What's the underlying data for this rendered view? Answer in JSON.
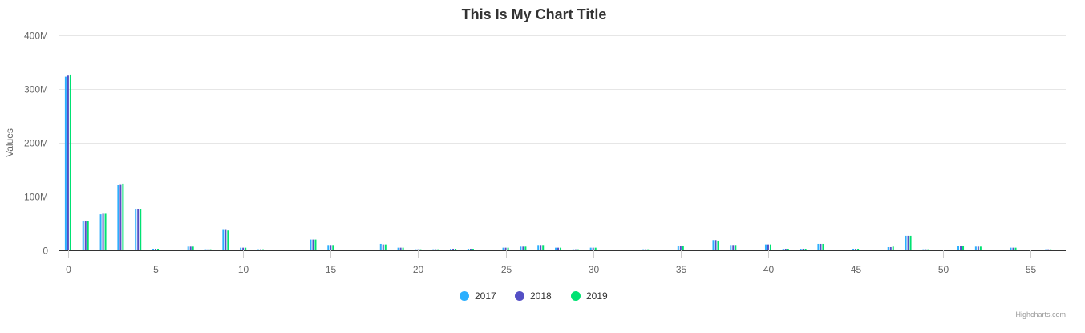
{
  "chart_data": {
    "type": "bar",
    "title": "This Is My Chart Title",
    "ylabel": "Values",
    "xlabel": "",
    "ylim": [
      0,
      400000000
    ],
    "yticks": [
      0,
      100000000,
      200000000,
      300000000,
      400000000
    ],
    "ytick_labels": [
      "0",
      "100M",
      "200M",
      "300M",
      "400M"
    ],
    "xlim": [
      -0.5,
      57
    ],
    "xticks": [
      0,
      5,
      10,
      15,
      20,
      25,
      30,
      35,
      40,
      45,
      50,
      55
    ],
    "xtick_labels": [
      "0",
      "5",
      "10",
      "15",
      "20",
      "25",
      "30",
      "35",
      "40",
      "45",
      "50",
      "55"
    ],
    "grid": true,
    "legend_position": "bottom-center",
    "credits": "Highcharts.com",
    "series": [
      {
        "name": "2017",
        "color": "#2caffe",
        "values": [
          323000000,
          55000000,
          67000000,
          122000000,
          77000000,
          3000000,
          0,
          7000000,
          2000000,
          38000000,
          5000000,
          2000000,
          0,
          0,
          20000000,
          10000000,
          0,
          0,
          12000000,
          5000000,
          2000000,
          2000000,
          3000000,
          3000000,
          0,
          5000000,
          7000000,
          10000000,
          5000000,
          2000000,
          5000000,
          0,
          0,
          2000000,
          0,
          8000000,
          0,
          19000000,
          10000000,
          0,
          11000000,
          3000000,
          3000000,
          12000000,
          0,
          3000000,
          0,
          6000000,
          27000000,
          2000000,
          0,
          8000000,
          7000000,
          0,
          5000000,
          0,
          2000000
        ]
      },
      {
        "name": "2018",
        "color": "#544fc5",
        "values": [
          325000000,
          55000000,
          68000000,
          123000000,
          77000000,
          3000000,
          0,
          7000000,
          2000000,
          38000000,
          5000000,
          2000000,
          0,
          0,
          20000000,
          10000000,
          0,
          0,
          11000000,
          5000000,
          2000000,
          2000000,
          3000000,
          3000000,
          0,
          5000000,
          7000000,
          10000000,
          5000000,
          2000000,
          5000000,
          0,
          0,
          2000000,
          0,
          8000000,
          0,
          19000000,
          10000000,
          0,
          11000000,
          3000000,
          3000000,
          12000000,
          0,
          3000000,
          0,
          6000000,
          27000000,
          2000000,
          0,
          8000000,
          7000000,
          0,
          5000000,
          0,
          2000000
        ]
      },
      {
        "name": "2019",
        "color": "#00e272",
        "values": [
          327000000,
          55000000,
          68000000,
          124000000,
          77000000,
          3000000,
          0,
          7000000,
          2000000,
          37000000,
          5000000,
          2000000,
          0,
          0,
          20000000,
          10000000,
          0,
          0,
          11000000,
          5000000,
          2000000,
          2000000,
          3000000,
          3000000,
          0,
          5000000,
          7000000,
          10000000,
          5000000,
          2000000,
          5000000,
          0,
          0,
          2000000,
          0,
          8000000,
          0,
          18000000,
          10000000,
          0,
          11000000,
          3000000,
          3000000,
          12000000,
          0,
          3000000,
          0,
          7000000,
          27000000,
          2000000,
          0,
          8000000,
          7000000,
          0,
          5000000,
          0,
          2000000
        ]
      }
    ]
  }
}
